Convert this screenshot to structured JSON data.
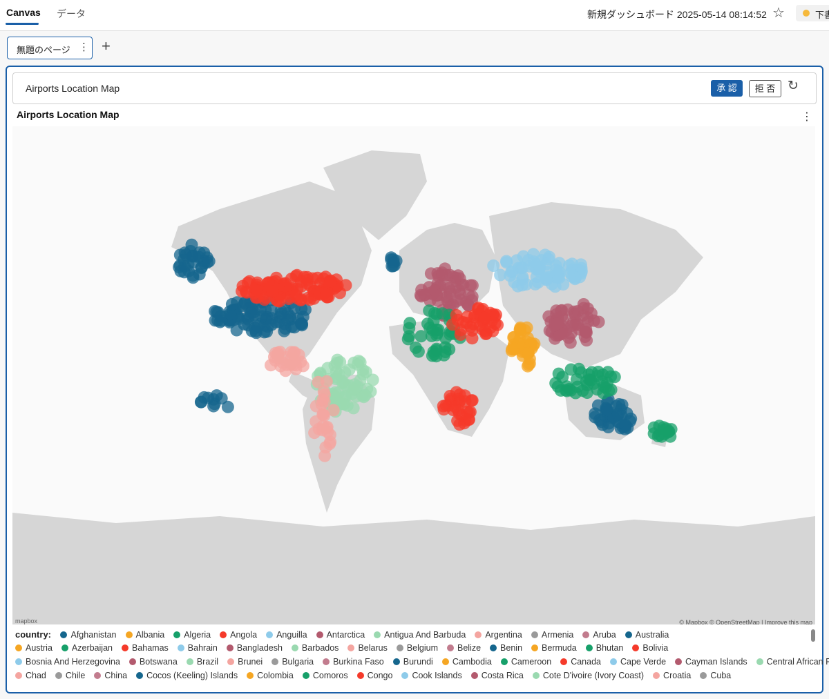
{
  "topbar": {
    "tabs": [
      {
        "label": "Canvas"
      },
      {
        "label": "データ"
      }
    ],
    "dashboard_title": "新規ダッシュボード 2025-05-14 08:14:52",
    "star_icon": "star-icon",
    "status_label": "下書"
  },
  "pages": {
    "current_page_label": "無題のページ",
    "add_icon": "plus-icon"
  },
  "widget": {
    "review_title": "Airports Location Map",
    "approve_label": "承 認",
    "reject_label": "拒 否",
    "refresh_icon": "refresh-icon",
    "chart_title": "Airports Location Map"
  },
  "map": {
    "logo_text": "mapbox",
    "attribution": "© Mapbox © OpenStreetMap | Improve this map"
  },
  "legend": {
    "title": "country:",
    "items": [
      {
        "label": "Afghanistan",
        "color": "#15668d"
      },
      {
        "label": "Albania",
        "color": "#f5a623"
      },
      {
        "label": "Algeria",
        "color": "#17a06a"
      },
      {
        "label": "Angola",
        "color": "#f53a2a"
      },
      {
        "label": "Anguilla",
        "color": "#8ecbea"
      },
      {
        "label": "Antarctica",
        "color": "#b35a6e"
      },
      {
        "label": "Antigua And Barbuda",
        "color": "#9ad9b0"
      },
      {
        "label": "Argentina",
        "color": "#f4a5a0"
      },
      {
        "label": "Armenia",
        "color": "#9a9a9a"
      },
      {
        "label": "Aruba",
        "color": "#c27c8e"
      },
      {
        "label": "Australia",
        "color": "#15668d"
      },
      {
        "label": "Austria",
        "color": "#f5a623"
      },
      {
        "label": "Azerbaijan",
        "color": "#17a06a"
      },
      {
        "label": "Bahamas",
        "color": "#f53a2a"
      },
      {
        "label": "Bahrain",
        "color": "#8ecbea"
      },
      {
        "label": "Bangladesh",
        "color": "#b35a6e"
      },
      {
        "label": "Barbados",
        "color": "#9ad9b0"
      },
      {
        "label": "Belarus",
        "color": "#f4a5a0"
      },
      {
        "label": "Belgium",
        "color": "#9a9a9a"
      },
      {
        "label": "Belize",
        "color": "#c27c8e"
      },
      {
        "label": "Benin",
        "color": "#15668d"
      },
      {
        "label": "Bermuda",
        "color": "#f5a623"
      },
      {
        "label": "Bhutan",
        "color": "#17a06a"
      },
      {
        "label": "Bolivia",
        "color": "#f53a2a"
      },
      {
        "label": "Bosnia And Herzegovina",
        "color": "#8ecbea"
      },
      {
        "label": "Botswana",
        "color": "#b35a6e"
      },
      {
        "label": "Brazil",
        "color": "#9ad9b0"
      },
      {
        "label": "Brunei",
        "color": "#f4a5a0"
      },
      {
        "label": "Bulgaria",
        "color": "#9a9a9a"
      },
      {
        "label": "Burkina Faso",
        "color": "#c27c8e"
      },
      {
        "label": "Burundi",
        "color": "#15668d"
      },
      {
        "label": "Cambodia",
        "color": "#f5a623"
      },
      {
        "label": "Cameroon",
        "color": "#17a06a"
      },
      {
        "label": "Canada",
        "color": "#f53a2a"
      },
      {
        "label": "Cape Verde",
        "color": "#8ecbea"
      },
      {
        "label": "Cayman Islands",
        "color": "#b35a6e"
      },
      {
        "label": "Central African Republic",
        "color": "#9ad9b0"
      },
      {
        "label": "Chad",
        "color": "#f4a5a0"
      },
      {
        "label": "Chile",
        "color": "#9a9a9a"
      },
      {
        "label": "China",
        "color": "#c27c8e"
      },
      {
        "label": "Cocos (Keeling) Islands",
        "color": "#15668d"
      },
      {
        "label": "Colombia",
        "color": "#f5a623"
      },
      {
        "label": "Comoros",
        "color": "#17a06a"
      },
      {
        "label": "Congo",
        "color": "#f53a2a"
      },
      {
        "label": "Cook Islands",
        "color": "#8ecbea"
      },
      {
        "label": "Costa Rica",
        "color": "#b35a6e"
      },
      {
        "label": "Cote D'ivoire (Ivory Coast)",
        "color": "#9ad9b0"
      },
      {
        "label": "Croatia",
        "color": "#f4a5a0"
      },
      {
        "label": "Cuba",
        "color": "#9a9a9a"
      }
    ]
  }
}
